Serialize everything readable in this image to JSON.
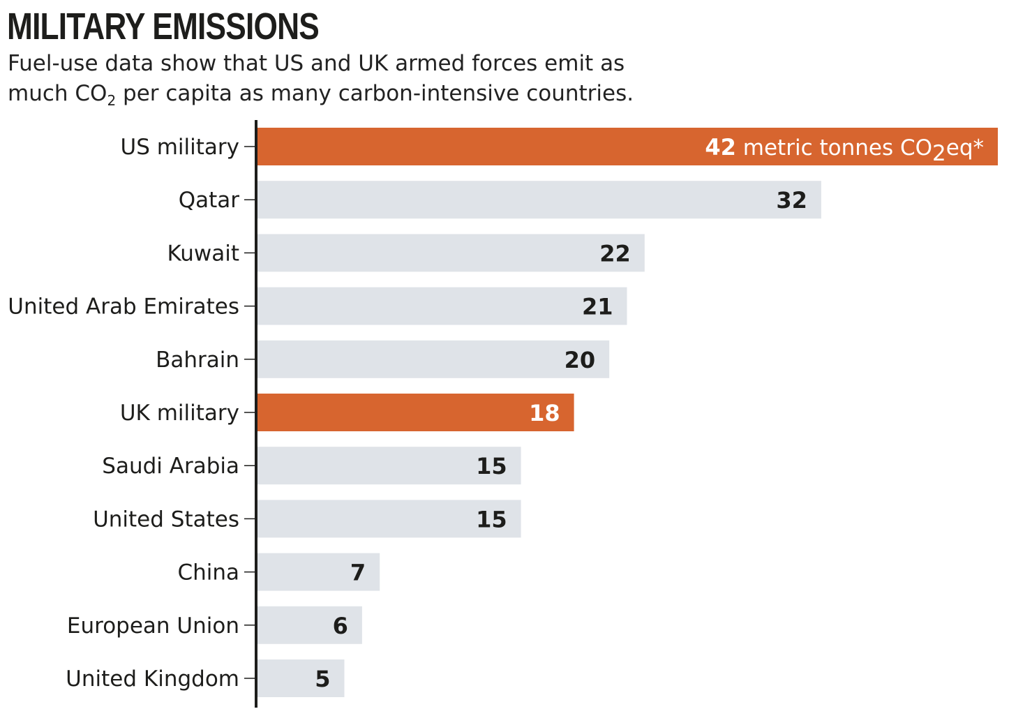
{
  "header": {
    "title": "MILITARY EMISSIONS",
    "subtitle_line1": "Fuel-use data show that US and UK armed forces emit as",
    "subtitle_line2_pre": "much CO",
    "subtitle_line2_sub": "2",
    "subtitle_line2_post": " per capita as many carbon-intensive countries."
  },
  "colors": {
    "highlight": "#d7652f",
    "bar": "#dfe3e8",
    "axis": "#1d1d1b",
    "text": "#1d1d1b",
    "highlight_text": "#ffffff"
  },
  "chart_data": {
    "type": "bar",
    "orientation": "horizontal",
    "categories": [
      "US military",
      "Qatar",
      "Kuwait",
      "United Arab Emirates",
      "Bahrain",
      "UK military",
      "Saudi Arabia",
      "United States",
      "China",
      "European Union",
      "United Kingdom"
    ],
    "values": [
      42,
      32,
      22,
      21,
      20,
      18,
      15,
      15,
      7,
      6,
      5
    ],
    "data_labels": [
      "42",
      "32",
      "22",
      "21",
      "20",
      "18",
      "15",
      "15",
      "7",
      "6",
      "5"
    ],
    "highlighted": [
      "US military",
      "UK military"
    ],
    "first_bar_unit": {
      "pre": " metric tonnes CO",
      "sub": "2",
      "post": "eq*"
    },
    "xlim": [
      0,
      42
    ],
    "grid": false,
    "legend": "none"
  }
}
